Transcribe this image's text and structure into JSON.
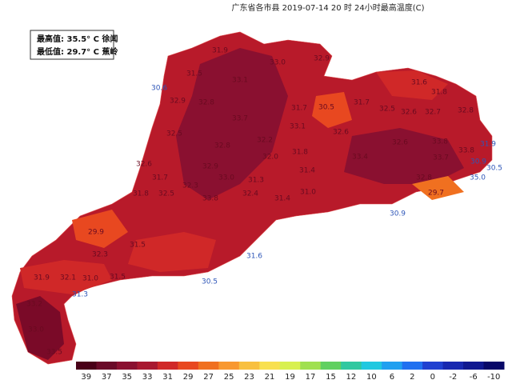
{
  "title": "广东省各市县 2019-07-14 20 时 24小时最高温度(C)",
  "summary": {
    "max": "最高值: 35.5° C 徐闻",
    "min": "最低值: 29.7° C 蕉岭"
  },
  "labels": [
    "31.9",
    "33.0",
    "32.9",
    "31.5",
    "33.1",
    "31.6",
    "31.8",
    "30.6",
    "32.9",
    "32.8",
    "31.7",
    "30.5",
    "31.7",
    "32.5",
    "32.6",
    "32.7",
    "32.8",
    "33.7",
    "33.1",
    "32.6",
    "32.5",
    "32.8",
    "32.2",
    "32.6",
    "33.8",
    "31.9",
    "31.8",
    "32.0",
    "33.8",
    "32.6",
    "32.9",
    "33.7",
    "30.9",
    "30.5",
    "33.4",
    "31.7",
    "32.3",
    "33.0",
    "31.3",
    "31.4",
    "29.7",
    "30.9",
    "35.0",
    "32.8",
    "31.8",
    "29.9",
    "32.5",
    "33.8",
    "32.4",
    "31.4",
    "31.0",
    "31.6",
    "30.5",
    "32.3",
    "31.5",
    "31.9",
    "32.1",
    "31.0",
    "31.5",
    "31.3",
    "33.2",
    "33.0",
    "33.5"
  ],
  "legend": {
    "ticks": [
      39,
      37,
      35,
      33,
      31,
      29,
      27,
      25,
      23,
      21,
      19,
      17,
      15,
      12,
      10,
      6,
      2,
      0,
      -2,
      -6,
      -10
    ],
    "colors": [
      "#4a0018",
      "#6a0a28",
      "#8a1030",
      "#a81830",
      "#d02828",
      "#e84820",
      "#f07020",
      "#f89830",
      "#f8c040",
      "#f8e050",
      "#d8f050",
      "#a0e050",
      "#60d060",
      "#30c8a0",
      "#20c8e0",
      "#20a0f0",
      "#2070f0",
      "#2040d0",
      "#1828b0",
      "#101890",
      "#080868"
    ]
  }
}
